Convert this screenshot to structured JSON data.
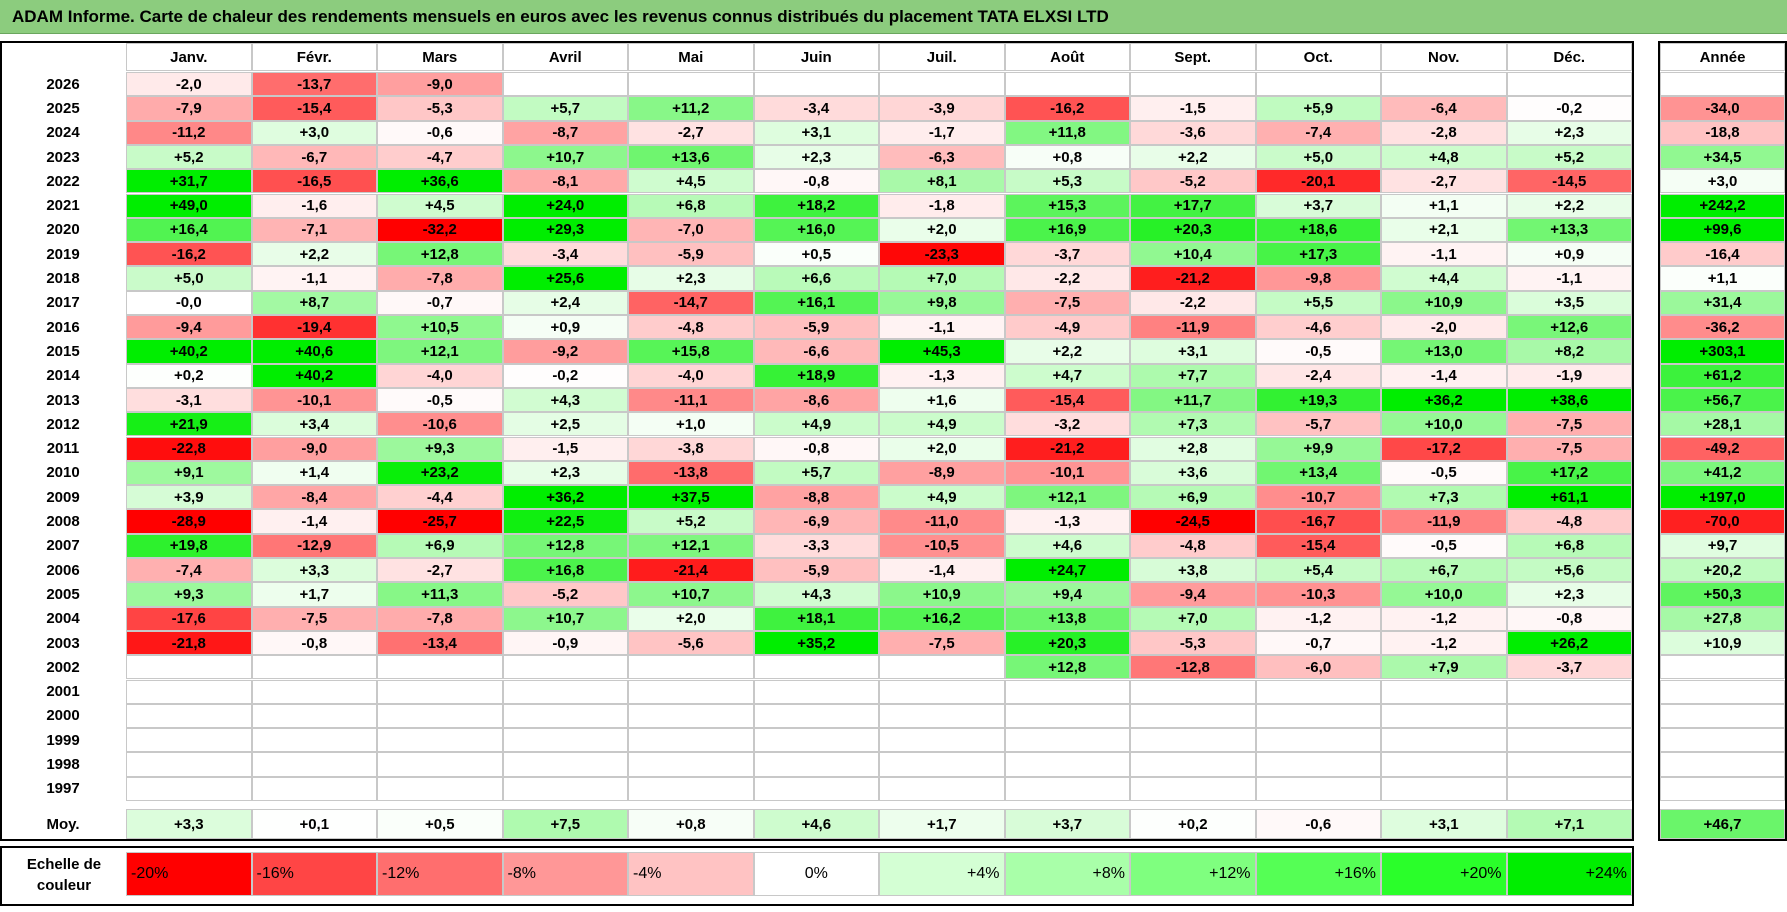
{
  "title": "ADAM Informe. Carte de chaleur des rendements mensuels en euros avec les revenus connus distribués du placement TATA ELXSI LTD",
  "chart_data": {
    "type": "heatmap",
    "title": "ADAM Informe. Carte de chaleur des rendements mensuels en euros avec les revenus connus distribués du placement TATA ELXSI LTD",
    "columns": [
      "Janv.",
      "Févr.",
      "Mars",
      "Avril",
      "Mai",
      "Juin",
      "Juil.",
      "Août",
      "Sept.",
      "Oct.",
      "Nov.",
      "Déc."
    ],
    "year_column_label": "Année",
    "rows": [
      {
        "year": "2026",
        "months": [
          "-2,0",
          "-13,7",
          "-9,0",
          "",
          "",
          "",
          "",
          "",
          "",
          "",
          "",
          ""
        ],
        "annual": ""
      },
      {
        "year": "2025",
        "months": [
          "-7,9",
          "-15,4",
          "-5,3",
          "+5,7",
          "+11,2",
          "-3,4",
          "-3,9",
          "-16,2",
          "-1,5",
          "+5,9",
          "-6,4",
          "-0,2"
        ],
        "annual": "-34,0"
      },
      {
        "year": "2024",
        "months": [
          "-11,2",
          "+3,0",
          "-0,6",
          "-8,7",
          "-2,7",
          "+3,1",
          "-1,7",
          "+11,8",
          "-3,6",
          "-7,4",
          "-2,8",
          "+2,3"
        ],
        "annual": "-18,8"
      },
      {
        "year": "2023",
        "months": [
          "+5,2",
          "-6,7",
          "-4,7",
          "+10,7",
          "+13,6",
          "+2,3",
          "-6,3",
          "+0,8",
          "+2,2",
          "+5,0",
          "+4,8",
          "+5,2"
        ],
        "annual": "+34,5"
      },
      {
        "year": "2022",
        "months": [
          "+31,7",
          "-16,5",
          "+36,6",
          "-8,1",
          "+4,5",
          "-0,8",
          "+8,1",
          "+5,3",
          "-5,2",
          "-20,1",
          "-2,7",
          "-14,5"
        ],
        "annual": "+3,0"
      },
      {
        "year": "2021",
        "months": [
          "+49,0",
          "-1,6",
          "+4,5",
          "+24,0",
          "+6,8",
          "+18,2",
          "-1,8",
          "+15,3",
          "+17,7",
          "+3,7",
          "+1,1",
          "+2,2"
        ],
        "annual": "+242,2"
      },
      {
        "year": "2020",
        "months": [
          "+16,4",
          "-7,1",
          "-32,2",
          "+29,3",
          "-7,0",
          "+16,0",
          "+2,0",
          "+16,9",
          "+20,3",
          "+18,6",
          "+2,1",
          "+13,3"
        ],
        "annual": "+99,6"
      },
      {
        "year": "2019",
        "months": [
          "-16,2",
          "+2,2",
          "+12,8",
          "-3,4",
          "-5,9",
          "+0,5",
          "-23,3",
          "-3,7",
          "+10,4",
          "+17,3",
          "-1,1",
          "+0,9"
        ],
        "annual": "-16,4"
      },
      {
        "year": "2018",
        "months": [
          "+5,0",
          "-1,1",
          "-7,8",
          "+25,6",
          "+2,3",
          "+6,6",
          "+7,0",
          "-2,2",
          "-21,2",
          "-9,8",
          "+4,4",
          "-1,1"
        ],
        "annual": "+1,1"
      },
      {
        "year": "2017",
        "months": [
          "-0,0",
          "+8,7",
          "-0,7",
          "+2,4",
          "-14,7",
          "+16,1",
          "+9,8",
          "-7,5",
          "-2,2",
          "+5,5",
          "+10,9",
          "+3,5"
        ],
        "annual": "+31,4"
      },
      {
        "year": "2016",
        "months": [
          "-9,4",
          "-19,4",
          "+10,5",
          "+0,9",
          "-4,8",
          "-5,9",
          "-1,1",
          "-4,9",
          "-11,9",
          "-4,6",
          "-2,0",
          "+12,6"
        ],
        "annual": "-36,2"
      },
      {
        "year": "2015",
        "months": [
          "+40,2",
          "+40,6",
          "+12,1",
          "-9,2",
          "+15,8",
          "-6,6",
          "+45,3",
          "+2,2",
          "+3,1",
          "-0,5",
          "+13,0",
          "+8,2"
        ],
        "annual": "+303,1"
      },
      {
        "year": "2014",
        "months": [
          "+0,2",
          "+40,2",
          "-4,0",
          "-0,2",
          "-4,0",
          "+18,9",
          "-1,3",
          "+4,7",
          "+7,7",
          "-2,4",
          "-1,4",
          "-1,9"
        ],
        "annual": "+61,2"
      },
      {
        "year": "2013",
        "months": [
          "-3,1",
          "-10,1",
          "-0,5",
          "+4,3",
          "-11,1",
          "-8,6",
          "+1,6",
          "-15,4",
          "+11,7",
          "+19,3",
          "+36,2",
          "+38,6"
        ],
        "annual": "+56,7"
      },
      {
        "year": "2012",
        "months": [
          "+21,9",
          "+3,4",
          "-10,6",
          "+2,5",
          "+1,0",
          "+4,9",
          "+4,9",
          "-3,2",
          "+7,3",
          "-5,7",
          "+10,0",
          "-7,5"
        ],
        "annual": "+28,1"
      },
      {
        "year": "2011",
        "months": [
          "-22,8",
          "-9,0",
          "+9,3",
          "-1,5",
          "-3,8",
          "-0,8",
          "+2,0",
          "-21,2",
          "+2,8",
          "+9,9",
          "-17,2",
          "-7,5"
        ],
        "annual": "-49,2"
      },
      {
        "year": "2010",
        "months": [
          "+9,1",
          "+1,4",
          "+23,2",
          "+2,3",
          "-13,8",
          "+5,7",
          "-8,9",
          "-10,1",
          "+3,6",
          "+13,4",
          "-0,5",
          "+17,2"
        ],
        "annual": "+41,2"
      },
      {
        "year": "2009",
        "months": [
          "+3,9",
          "-8,4",
          "-4,4",
          "+36,2",
          "+37,5",
          "-8,8",
          "+4,9",
          "+12,1",
          "+6,9",
          "-10,7",
          "+7,3",
          "+61,1"
        ],
        "annual": "+197,0"
      },
      {
        "year": "2008",
        "months": [
          "-28,9",
          "-1,4",
          "-25,7",
          "+22,5",
          "+5,2",
          "-6,9",
          "-11,0",
          "-1,3",
          "-24,5",
          "-16,7",
          "-11,9",
          "-4,8"
        ],
        "annual": "-70,0"
      },
      {
        "year": "2007",
        "months": [
          "+19,8",
          "-12,9",
          "+6,9",
          "+12,8",
          "+12,1",
          "-3,3",
          "-10,5",
          "+4,6",
          "-4,8",
          "-15,4",
          "-0,5",
          "+6,8"
        ],
        "annual": "+9,7"
      },
      {
        "year": "2006",
        "months": [
          "-7,4",
          "+3,3",
          "-2,7",
          "+16,8",
          "-21,4",
          "-5,9",
          "-1,4",
          "+24,7",
          "+3,8",
          "+5,4",
          "+6,7",
          "+5,6"
        ],
        "annual": "+20,2"
      },
      {
        "year": "2005",
        "months": [
          "+9,3",
          "+1,7",
          "+11,3",
          "-5,2",
          "+10,7",
          "+4,3",
          "+10,9",
          "+9,4",
          "-9,4",
          "-10,3",
          "+10,0",
          "+2,3"
        ],
        "annual": "+50,3"
      },
      {
        "year": "2004",
        "months": [
          "-17,6",
          "-7,5",
          "-7,8",
          "+10,7",
          "+2,0",
          "+18,1",
          "+16,2",
          "+13,8",
          "+7,0",
          "-1,2",
          "-1,2",
          "-0,8"
        ],
        "annual": "+27,8"
      },
      {
        "year": "2003",
        "months": [
          "-21,8",
          "-0,8",
          "-13,4",
          "-0,9",
          "-5,6",
          "+35,2",
          "-7,5",
          "+20,3",
          "-5,3",
          "-0,7",
          "-1,2",
          "+26,2"
        ],
        "annual": "+10,9"
      },
      {
        "year": "2002",
        "months": [
          "",
          "",
          "",
          "",
          "",
          "",
          "",
          "+12,8",
          "-12,8",
          "-6,0",
          "+7,9",
          "-3,7"
        ],
        "annual": ""
      },
      {
        "year": "2001",
        "months": [
          "",
          "",
          "",
          "",
          "",
          "",
          "",
          "",
          "",
          "",
          "",
          ""
        ],
        "annual": ""
      },
      {
        "year": "2000",
        "months": [
          "",
          "",
          "",
          "",
          "",
          "",
          "",
          "",
          "",
          "",
          "",
          ""
        ],
        "annual": ""
      },
      {
        "year": "1999",
        "months": [
          "",
          "",
          "",
          "",
          "",
          "",
          "",
          "",
          "",
          "",
          "",
          ""
        ],
        "annual": ""
      },
      {
        "year": "1998",
        "months": [
          "",
          "",
          "",
          "",
          "",
          "",
          "",
          "",
          "",
          "",
          "",
          ""
        ],
        "annual": ""
      },
      {
        "year": "1997",
        "months": [
          "",
          "",
          "",
          "",
          "",
          "",
          "",
          "",
          "",
          "",
          "",
          ""
        ],
        "annual": ""
      }
    ],
    "average": {
      "label": "Moy.",
      "months": [
        "+3,3",
        "+0,1",
        "+0,5",
        "+7,5",
        "+0,8",
        "+4,6",
        "+1,7",
        "+3,7",
        "+0,2",
        "-0,6",
        "+3,1",
        "+7,1"
      ],
      "annual": "+46,7"
    },
    "legend": {
      "label": "Echelle de couleur",
      "stops": [
        "-20%",
        "-16%",
        "-12%",
        "-8%",
        "-4%",
        "0%",
        "+4%",
        "+8%",
        "+12%",
        "+16%",
        "+20%",
        "+24%"
      ]
    }
  },
  "colors": {
    "title_bar": "#8ccc7e",
    "scale": [
      "#ff0000",
      "#ff4545",
      "#ff6e6e",
      "#ff9797",
      "#ffc3c3",
      "#ffffff",
      "#d4ffd4",
      "#a9ffa9",
      "#7fff7f",
      "#55ff55",
      "#2aff2a",
      "#00ee00"
    ]
  }
}
